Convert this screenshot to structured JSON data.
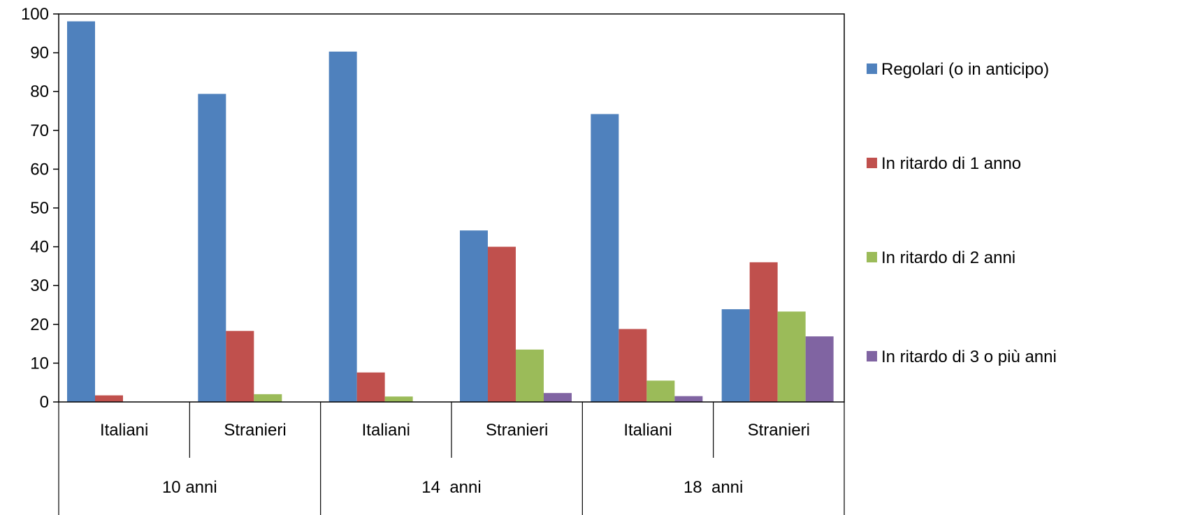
{
  "chart_data": {
    "type": "bar",
    "title": "",
    "xlabel": "",
    "ylabel": "",
    "ylim": [
      0,
      100
    ],
    "yticks": [
      0,
      10,
      20,
      30,
      40,
      50,
      60,
      70,
      80,
      90,
      100
    ],
    "grid": false,
    "legend_position": "right",
    "groups": [
      {
        "label": "10 anni",
        "categories": [
          "Italiani",
          "Stranieri"
        ]
      },
      {
        "label": "14  anni",
        "categories": [
          "Italiani",
          "Stranieri"
        ]
      },
      {
        "label": "18  anni",
        "categories": [
          "Italiani",
          "Stranieri"
        ]
      }
    ],
    "categories": [
      "Italiani",
      "Stranieri",
      "Italiani",
      "Stranieri",
      "Italiani",
      "Stranieri"
    ],
    "series": [
      {
        "name": "Regolari (o in anticipo)",
        "color": "#4F81BD",
        "values": [
          98.1,
          79.4,
          90.3,
          44.2,
          74.2,
          23.9
        ]
      },
      {
        "name": "In ritardo di 1 anno",
        "color": "#C0504D",
        "values": [
          1.7,
          18.3,
          7.6,
          40.0,
          18.8,
          36.0
        ]
      },
      {
        "name": "In ritardo di 2 anni",
        "color": "#9BBB59",
        "values": [
          0,
          2.0,
          1.4,
          13.5,
          5.5,
          23.3
        ]
      },
      {
        "name": "In ritardo di 3 o più anni",
        "color": "#8064A2",
        "values": [
          0,
          0,
          0,
          2.3,
          1.5,
          16.9
        ]
      }
    ]
  }
}
